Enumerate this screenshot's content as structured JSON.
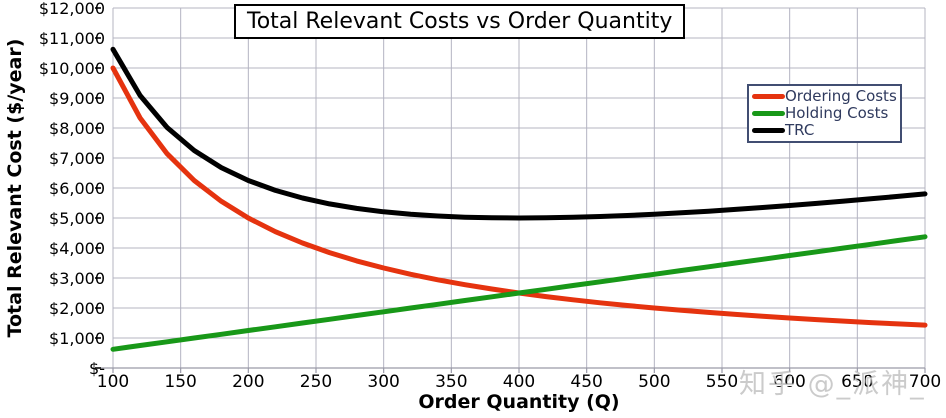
{
  "title": "Total Relevant Costs vs Order Quantity",
  "watermark": "知乎 @_派神_",
  "x_axis": {
    "title": "Order Quantity (Q)",
    "tick_labels": [
      "100",
      "150",
      "200",
      "250",
      "300",
      "350",
      "400",
      "450",
      "500",
      "550",
      "600",
      "650",
      "700"
    ]
  },
  "y_axis": {
    "title": "Total Relevant Cost ($/year)",
    "tick_labels": [
      "$-",
      "$1,000",
      "$2,000",
      "$3,000",
      "$4,000",
      "$5,000",
      "$6,000",
      "$7,000",
      "$8,000",
      "$9,000",
      "$10,000",
      "$11,000",
      "$12,000"
    ]
  },
  "legend": {
    "position": "upper right"
  },
  "colors": {
    "gridline": "#b4b4c2",
    "axis": "#9a9aa8",
    "tick": "#3a3a3a",
    "legend_border": "#414e72",
    "legend_text": "#2f3a5e",
    "watermark": "#c9c9c9"
  },
  "chart_data": {
    "type": "line",
    "title": "Total Relevant Costs vs Order Quantity",
    "xlabel": "Order Quantity (Q)",
    "ylabel": "Total Relevant Cost ($/year)",
    "xlim": [
      100,
      700
    ],
    "ylim": [
      0,
      12000
    ],
    "x_tick_interval": 50,
    "y_tick_interval": 1000,
    "grid": true,
    "legend_position": "upper right",
    "x": [
      100,
      120,
      140,
      160,
      180,
      200,
      220,
      240,
      260,
      280,
      300,
      320,
      340,
      360,
      380,
      400,
      420,
      440,
      460,
      480,
      500,
      520,
      540,
      560,
      580,
      600,
      620,
      640,
      660,
      680,
      700
    ],
    "series": [
      {
        "name": "Ordering Costs",
        "color": "#e5330f",
        "values": [
          10000,
          8333,
          7143,
          6250,
          5556,
          5000,
          4545,
          4167,
          3846,
          3571,
          3333,
          3125,
          2941,
          2778,
          2632,
          2500,
          2381,
          2273,
          2174,
          2083,
          2000,
          1923,
          1852,
          1786,
          1724,
          1667,
          1613,
          1563,
          1515,
          1471,
          1429
        ]
      },
      {
        "name": "Holding Costs",
        "color": "#189818",
        "values": [
          625,
          750,
          875,
          1000,
          1125,
          1250,
          1375,
          1500,
          1625,
          1750,
          1875,
          2000,
          2125,
          2250,
          2375,
          2500,
          2625,
          2750,
          2875,
          3000,
          3125,
          3250,
          3375,
          3500,
          3625,
          3750,
          3875,
          4000,
          4125,
          4250,
          4375
        ]
      },
      {
        "name": "TRC",
        "color": "#000000",
        "values": [
          10625,
          9083,
          8018,
          7250,
          6681,
          6250,
          5920,
          5667,
          5471,
          5321,
          5208,
          5125,
          5066,
          5028,
          5007,
          5000,
          5006,
          5023,
          5049,
          5083,
          5125,
          5173,
          5227,
          5286,
          5349,
          5417,
          5488,
          5563,
          5640,
          5721,
          5804
        ]
      }
    ]
  }
}
